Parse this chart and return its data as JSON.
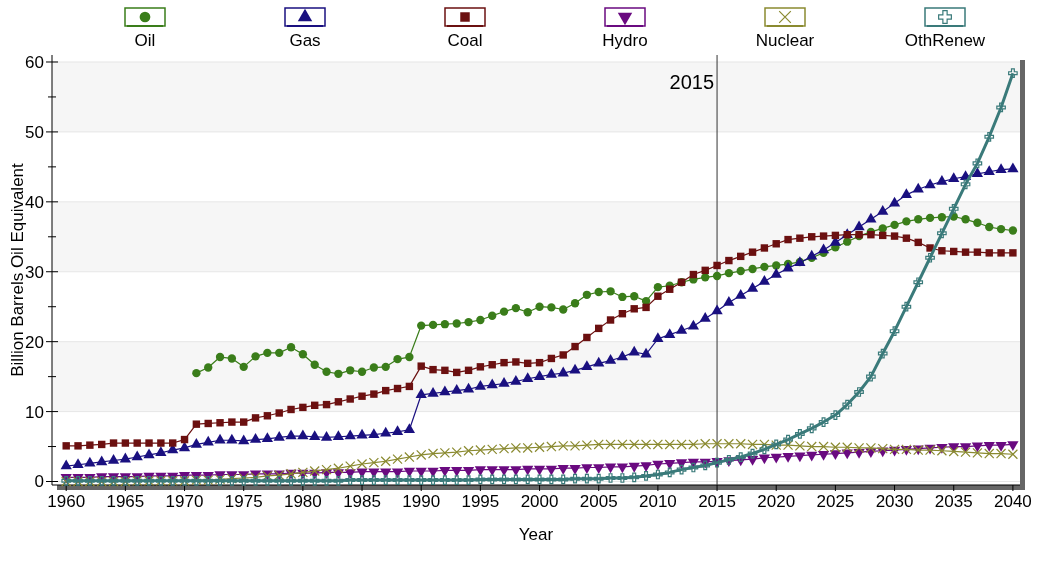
{
  "chart_data": {
    "type": "line",
    "xlabel": "Year",
    "ylabel": "Billion Barrels Oil Equivalent",
    "x": [
      1960,
      1961,
      1962,
      1963,
      1964,
      1965,
      1966,
      1967,
      1968,
      1969,
      1970,
      1971,
      1972,
      1973,
      1974,
      1975,
      1976,
      1977,
      1978,
      1979,
      1980,
      1981,
      1982,
      1983,
      1984,
      1985,
      1986,
      1987,
      1988,
      1989,
      1990,
      1991,
      1992,
      1993,
      1994,
      1995,
      1996,
      1997,
      1998,
      1999,
      2000,
      2001,
      2002,
      2003,
      2004,
      2005,
      2006,
      2007,
      2008,
      2009,
      2010,
      2011,
      2012,
      2013,
      2014,
      2015,
      2016,
      2017,
      2018,
      2019,
      2020,
      2021,
      2022,
      2023,
      2024,
      2025,
      2026,
      2027,
      2028,
      2029,
      2030,
      2031,
      2032,
      2033,
      2034,
      2035,
      2036,
      2037,
      2038,
      2039,
      2040
    ],
    "series": [
      {
        "name": "Oil",
        "color": "#3a7d1a",
        "marker": "circle",
        "values": [
          null,
          null,
          null,
          null,
          null,
          null,
          null,
          null,
          null,
          null,
          null,
          15.5,
          16.3,
          17.8,
          17.6,
          16.4,
          17.9,
          18.4,
          18.4,
          19.2,
          18.2,
          16.7,
          15.7,
          15.4,
          15.9,
          15.7,
          16.3,
          16.4,
          17.5,
          17.8,
          22.3,
          22.4,
          22.5,
          22.6,
          22.8,
          23.1,
          23.7,
          24.3,
          24.8,
          24.2,
          25.0,
          24.9,
          24.6,
          25.5,
          26.7,
          27.1,
          27.2,
          26.4,
          26.5,
          25.8,
          27.8,
          28.0,
          28.5,
          28.9,
          29.2,
          29.4,
          29.8,
          30.1,
          30.4,
          30.7,
          30.9,
          31.1,
          31.4,
          32.0,
          32.7,
          33.5,
          34.3,
          35.1,
          35.7,
          36.2,
          36.7,
          37.2,
          37.5,
          37.7,
          37.8,
          37.9,
          37.5,
          37.0,
          36.4,
          36.1,
          35.9
        ]
      },
      {
        "name": "Gas",
        "color": "#1a1080",
        "marker": "triangle",
        "values": [
          2.2,
          2.4,
          2.6,
          2.8,
          3.0,
          3.2,
          3.5,
          3.8,
          4.1,
          4.5,
          4.8,
          5.3,
          5.6,
          5.9,
          5.9,
          5.8,
          6.0,
          6.1,
          6.3,
          6.5,
          6.5,
          6.4,
          6.3,
          6.4,
          6.5,
          6.6,
          6.7,
          6.9,
          7.1,
          7.4,
          12.4,
          12.6,
          12.8,
          13.0,
          13.2,
          13.6,
          13.8,
          14.0,
          14.3,
          14.7,
          15.0,
          15.3,
          15.5,
          15.9,
          16.4,
          16.9,
          17.3,
          17.8,
          18.5,
          18.2,
          20.4,
          21.0,
          21.6,
          22.2,
          23.3,
          24.4,
          25.6,
          26.6,
          27.6,
          28.6,
          29.6,
          30.5,
          31.3,
          32.2,
          33.1,
          34.2,
          35.3,
          36.4,
          37.5,
          38.6,
          39.8,
          41.0,
          41.8,
          42.4,
          42.9,
          43.3,
          43.6,
          44.0,
          44.3,
          44.6,
          44.7
        ]
      },
      {
        "name": "Coal",
        "color": "#6b1010",
        "marker": "square",
        "values": [
          5.1,
          5.1,
          5.2,
          5.3,
          5.5,
          5.5,
          5.5,
          5.5,
          5.5,
          5.5,
          6.0,
          8.2,
          8.3,
          8.4,
          8.5,
          8.5,
          9.1,
          9.4,
          9.8,
          10.3,
          10.6,
          10.9,
          11.0,
          11.4,
          11.8,
          12.2,
          12.5,
          13.0,
          13.3,
          13.6,
          16.5,
          16.0,
          15.9,
          15.6,
          15.9,
          16.4,
          16.7,
          17.0,
          17.1,
          16.9,
          17.0,
          17.6,
          18.1,
          19.3,
          20.6,
          21.9,
          23.1,
          24.0,
          24.7,
          24.9,
          26.5,
          27.5,
          28.5,
          29.6,
          30.2,
          30.9,
          31.6,
          32.2,
          32.8,
          33.4,
          34.0,
          34.6,
          34.8,
          35.0,
          35.1,
          35.2,
          35.3,
          35.3,
          35.3,
          35.2,
          35.1,
          34.8,
          34.2,
          33.4,
          33.0,
          32.9,
          32.8,
          32.8,
          32.7,
          32.7,
          32.7
        ]
      },
      {
        "name": "Hydro",
        "color": "#6a0a80",
        "marker": "triangle-down",
        "values": [
          0.6,
          0.6,
          0.6,
          0.7,
          0.7,
          0.7,
          0.7,
          0.8,
          0.8,
          0.8,
          0.9,
          0.9,
          0.9,
          1.0,
          1.0,
          1.0,
          1.1,
          1.1,
          1.1,
          1.2,
          1.2,
          1.2,
          1.3,
          1.3,
          1.3,
          1.4,
          1.4,
          1.4,
          1.4,
          1.5,
          1.5,
          1.5,
          1.6,
          1.6,
          1.6,
          1.7,
          1.7,
          1.7,
          1.7,
          1.8,
          1.8,
          1.8,
          1.9,
          1.9,
          2.0,
          2.0,
          2.1,
          2.1,
          2.2,
          2.3,
          2.5,
          2.6,
          2.7,
          2.8,
          2.8,
          2.9,
          3.0,
          3.1,
          3.2,
          3.4,
          3.5,
          3.6,
          3.7,
          3.8,
          3.9,
          4.0,
          4.1,
          4.2,
          4.3,
          4.4,
          4.5,
          4.6,
          4.7,
          4.8,
          4.9,
          5.0,
          5.0,
          5.1,
          5.2,
          5.2,
          5.3
        ]
      },
      {
        "name": "Nuclear",
        "color": "#8a8a30",
        "marker": "x",
        "values": [
          0.0,
          0.0,
          0.0,
          0.0,
          0.0,
          0.0,
          0.1,
          0.1,
          0.1,
          0.1,
          0.1,
          0.2,
          0.2,
          0.3,
          0.4,
          0.5,
          0.6,
          0.8,
          0.9,
          1.1,
          1.3,
          1.5,
          1.7,
          1.9,
          2.2,
          2.5,
          2.7,
          2.9,
          3.2,
          3.5,
          3.8,
          4.0,
          4.1,
          4.2,
          4.4,
          4.5,
          4.6,
          4.7,
          4.8,
          4.8,
          4.9,
          5.0,
          5.1,
          5.1,
          5.2,
          5.3,
          5.3,
          5.3,
          5.3,
          5.3,
          5.3,
          5.3,
          5.3,
          5.3,
          5.4,
          5.4,
          5.4,
          5.4,
          5.3,
          5.3,
          5.2,
          5.2,
          5.1,
          5.0,
          5.0,
          4.9,
          4.9,
          4.8,
          4.8,
          4.7,
          4.6,
          4.6,
          4.5,
          4.5,
          4.4,
          4.3,
          4.2,
          4.1,
          4.0,
          4.0,
          3.9
        ]
      },
      {
        "name": "OthRenew",
        "color": "#3a7a7a",
        "marker": "cross",
        "values": [
          0.1,
          0.1,
          0.1,
          0.1,
          0.1,
          0.1,
          0.1,
          0.1,
          0.1,
          0.1,
          0.1,
          0.1,
          0.1,
          0.1,
          0.1,
          0.1,
          0.1,
          0.1,
          0.1,
          0.1,
          0.1,
          0.1,
          0.1,
          0.1,
          0.2,
          0.2,
          0.2,
          0.2,
          0.2,
          0.2,
          0.2,
          0.2,
          0.2,
          0.2,
          0.2,
          0.3,
          0.3,
          0.3,
          0.3,
          0.3,
          0.3,
          0.3,
          0.3,
          0.4,
          0.4,
          0.4,
          0.5,
          0.5,
          0.6,
          0.8,
          1.0,
          1.3,
          1.7,
          2.0,
          2.3,
          2.7,
          3.1,
          3.5,
          4.0,
          4.6,
          5.3,
          6.0,
          6.8,
          7.6,
          8.5,
          9.5,
          11.0,
          12.8,
          15.0,
          18.3,
          21.5,
          25.0,
          28.5,
          32.0,
          35.5,
          39.0,
          42.5,
          45.5,
          49.3,
          53.5,
          58.4
        ]
      }
    ],
    "xlim": [
      1958.8,
      2040.6
    ],
    "xticks": [
      1960,
      1965,
      1970,
      1975,
      1980,
      1985,
      1990,
      1995,
      2000,
      2005,
      2010,
      2015,
      2020,
      2025,
      2030,
      2035,
      2040
    ],
    "ylim": [
      -0.5,
      61
    ],
    "yticks": [
      0,
      {
        "value": 5,
        "label": null
      },
      10,
      {
        "value": 15,
        "label": null
      },
      20,
      {
        "value": 25,
        "label": null
      },
      30,
      {
        "value": 35,
        "label": null
      },
      40,
      {
        "value": 45,
        "label": null
      },
      50,
      {
        "value": 55,
        "label": null
      },
      60
    ],
    "grid": "y",
    "legend": "top",
    "line_style": "solid",
    "ref_lines": [
      {
        "axis": "x",
        "value": 2015,
        "label": "2015",
        "color": "#333333"
      }
    ]
  }
}
